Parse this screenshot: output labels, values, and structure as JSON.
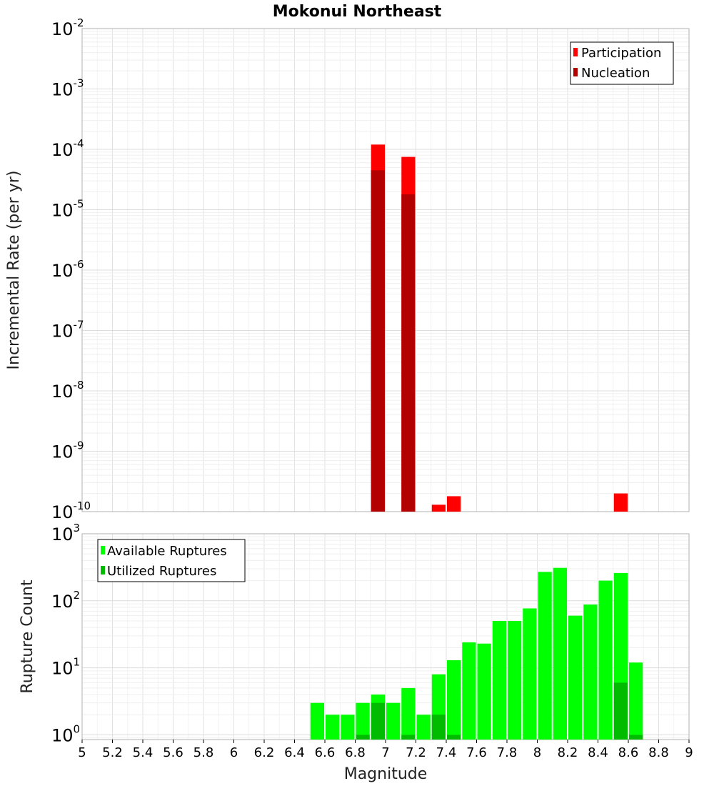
{
  "chart_data": [
    {
      "type": "bar",
      "title": "Mokonui Northeast",
      "xlabel": "",
      "ylabel": "Incremental Rate (per yr)",
      "xlim": [
        5,
        9
      ],
      "ylim_exponents": [
        -10,
        -2
      ],
      "yscale": "log",
      "bin_width": 0.1,
      "legend_position": "top-right",
      "ytick_base": "10",
      "ytick_exponents": [
        "-10",
        "-9",
        "-8",
        "-7",
        "-6",
        "-5",
        "-4",
        "-3",
        "-2"
      ],
      "series": [
        {
          "name": "Participation",
          "color": "#ff0000",
          "x": [
            6.95,
            7.15,
            7.35,
            7.45,
            8.55
          ],
          "values": [
            0.00012,
            7.5e-05,
            1.3e-10,
            1.8e-10,
            2e-10
          ]
        },
        {
          "name": "Nucleation",
          "color": "#b30000",
          "x": [
            6.95,
            7.15
          ],
          "values": [
            4.5e-05,
            1.8e-05
          ]
        }
      ]
    },
    {
      "type": "bar",
      "title": "",
      "xlabel": "Magnitude",
      "ylabel": "Rupture Count",
      "xlim": [
        5,
        9
      ],
      "ylim_exponents": [
        -0.07,
        3
      ],
      "yscale": "log",
      "bin_width": 0.1,
      "legend_position": "top-left",
      "ytick_base": "10",
      "ytick_exponents": [
        "0",
        "1",
        "2",
        "3"
      ],
      "xticks": [
        "5",
        "5.2",
        "5.4",
        "5.6",
        "5.8",
        "6",
        "6.2",
        "6.4",
        "6.6",
        "6.8",
        "7",
        "7.2",
        "7.4",
        "7.6",
        "7.8",
        "8",
        "8.2",
        "8.4",
        "8.6",
        "8.8",
        "9"
      ],
      "series": [
        {
          "name": "Available Ruptures",
          "color": "#00ff00",
          "x": [
            6.55,
            6.65,
            6.75,
            6.85,
            6.95,
            7.05,
            7.15,
            7.25,
            7.35,
            7.45,
            7.55,
            7.65,
            7.75,
            7.85,
            7.95,
            8.05,
            8.15,
            8.25,
            8.35,
            8.45,
            8.55,
            8.65
          ],
          "values": [
            3,
            2,
            2,
            3,
            4,
            3,
            5,
            2,
            8,
            13,
            24,
            23,
            50,
            50,
            77,
            270,
            310,
            60,
            88,
            200,
            260,
            12
          ]
        },
        {
          "name": "Utilized Ruptures",
          "color": "#00bb00",
          "x": [
            6.85,
            6.95,
            7.15,
            7.35,
            7.45,
            8.55,
            8.65
          ],
          "values": [
            1,
            3,
            1,
            2,
            1,
            6,
            1
          ]
        }
      ]
    }
  ]
}
